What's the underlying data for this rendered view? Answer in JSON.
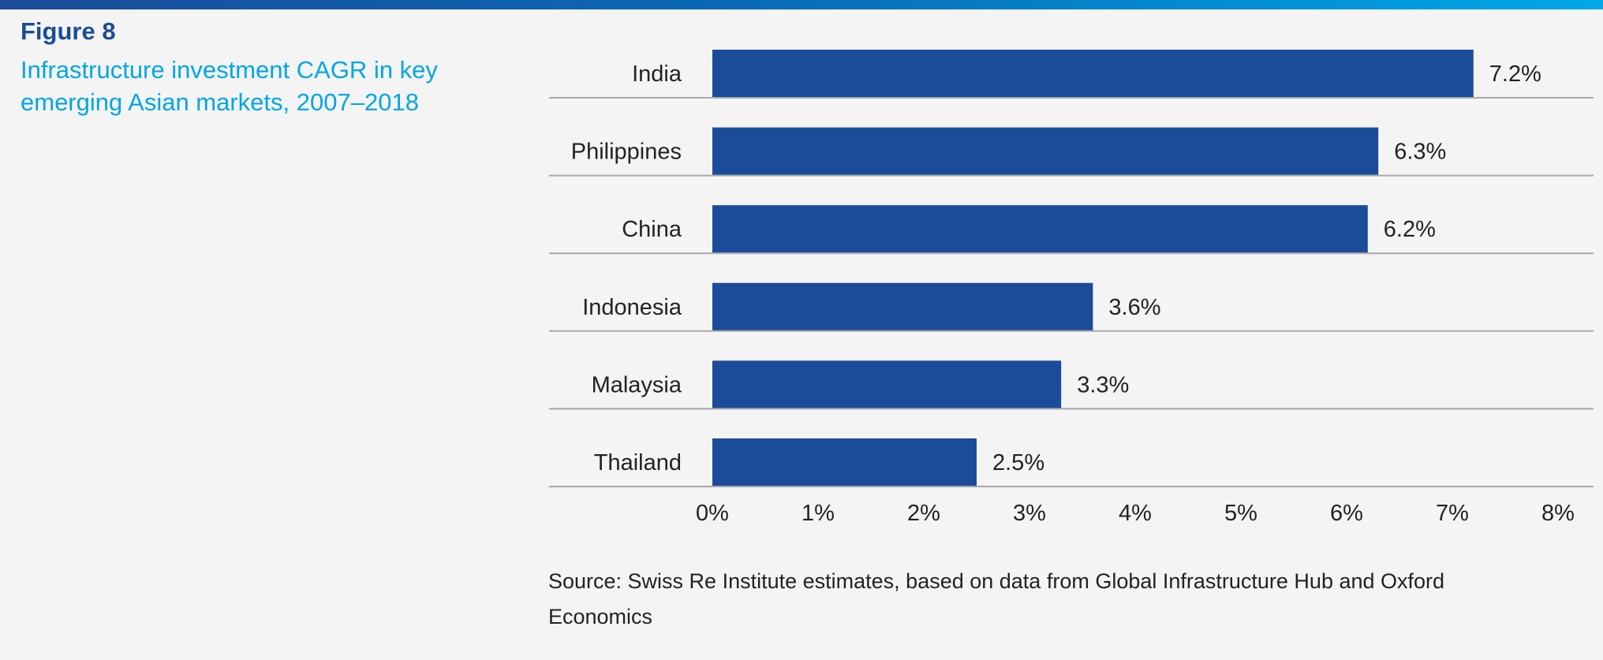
{
  "figure_label": "Figure 8",
  "title": "Infrastructure investment CAGR in key emerging Asian markets, 2007–2018",
  "source": "Source: Swiss Re Institute estimates, based on data from Global Infrastructure Hub and Oxford Economics",
  "colors": {
    "bar": "#1b4c9a",
    "title": "#00a6e4",
    "label": "#1b4c9a"
  },
  "chart_data": {
    "type": "bar",
    "orientation": "horizontal",
    "title": "Infrastructure investment CAGR in key emerging Asian markets, 2007–2018",
    "categories": [
      "India",
      "Philippines",
      "China",
      "Indonesia",
      "Malaysia",
      "Thailand"
    ],
    "values": [
      7.2,
      6.3,
      6.2,
      3.6,
      3.3,
      2.5
    ],
    "data_labels": [
      "7.2%",
      "6.3%",
      "6.2%",
      "3.6%",
      "3.3%",
      "2.5%"
    ],
    "xlim": [
      0,
      8
    ],
    "xticks": [
      "0%",
      "1%",
      "2%",
      "3%",
      "4%",
      "5%",
      "6%",
      "7%",
      "8%"
    ],
    "xlabel": "",
    "ylabel": "",
    "grid": false,
    "legend": "none"
  }
}
